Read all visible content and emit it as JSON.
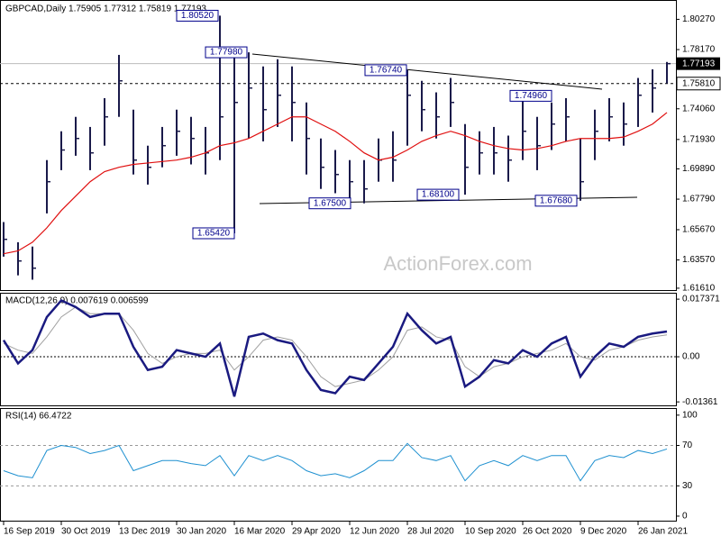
{
  "chart_data": [
    {
      "type": "ohlc",
      "title": "GBPCAD,Daily  1.75905 1.77312 1.75819 1.77193",
      "watermark": "ActionForex.com",
      "categories": [
        "16 Sep 2019",
        null,
        null,
        null,
        "30 Oct 2019",
        null,
        null,
        null,
        "13 Dec 2019",
        null,
        null,
        null,
        "30 Jan 2020",
        null,
        null,
        null,
        "16 Mar 2020",
        null,
        null,
        null,
        "29 Apr 2020",
        null,
        null,
        null,
        "12 Jun 2020",
        null,
        null,
        null,
        "28 Jul 2020",
        null,
        null,
        null,
        "10 Sep 2020",
        null,
        null,
        null,
        "26 Oct 2020",
        null,
        null,
        null,
        "9 Dec 2020",
        null,
        null,
        null,
        "26 Jan 2021",
        null,
        null
      ],
      "high": [
        1.662,
        1.648,
        1.645,
        1.705,
        1.725,
        1.735,
        1.728,
        1.748,
        1.778,
        1.74,
        1.715,
        1.728,
        1.74,
        1.735,
        1.728,
        1.8052,
        1.78,
        1.7798,
        1.77,
        1.775,
        1.77,
        1.745,
        1.72,
        1.712,
        1.705,
        1.705,
        1.72,
        1.725,
        1.7674,
        1.76,
        1.752,
        1.762,
        1.73,
        1.725,
        1.728,
        1.722,
        1.7496,
        1.735,
        1.745,
        1.748,
        1.72,
        1.74,
        1.748,
        1.745,
        1.762,
        1.768,
        1.7731
      ],
      "low": [
        1.638,
        1.625,
        1.622,
        1.668,
        1.698,
        1.708,
        1.698,
        1.715,
        1.735,
        1.695,
        1.688,
        1.7,
        1.708,
        1.702,
        1.695,
        1.705,
        1.6542,
        1.72,
        1.718,
        1.728,
        1.718,
        1.695,
        1.685,
        1.682,
        1.675,
        1.675,
        1.69,
        1.69,
        1.715,
        1.725,
        1.72,
        1.728,
        1.681,
        1.695,
        1.695,
        1.69,
        1.705,
        1.698,
        1.712,
        1.718,
        1.6768,
        1.705,
        1.718,
        1.715,
        1.728,
        1.738,
        1.7582
      ],
      "close": [
        1.65,
        1.635,
        1.63,
        1.69,
        1.712,
        1.72,
        1.71,
        1.735,
        1.76,
        1.705,
        1.7,
        1.715,
        1.725,
        1.72,
        1.71,
        1.735,
        1.745,
        1.755,
        1.74,
        1.75,
        1.745,
        1.72,
        1.7,
        1.695,
        1.69,
        1.685,
        1.705,
        1.705,
        1.75,
        1.74,
        1.735,
        1.745,
        1.7,
        1.71,
        1.71,
        1.705,
        1.725,
        1.715,
        1.73,
        1.735,
        1.69,
        1.725,
        1.735,
        1.73,
        1.75,
        1.755,
        1.77193
      ],
      "ma": [
        1.64,
        1.642,
        1.648,
        1.658,
        1.67,
        1.68,
        1.69,
        1.697,
        1.7,
        1.702,
        1.703,
        1.704,
        1.705,
        1.707,
        1.71,
        1.715,
        1.717,
        1.72,
        1.725,
        1.73,
        1.735,
        1.735,
        1.73,
        1.725,
        1.718,
        1.71,
        1.705,
        1.707,
        1.712,
        1.718,
        1.722,
        1.725,
        1.722,
        1.718,
        1.715,
        1.713,
        1.712,
        1.713,
        1.715,
        1.718,
        1.72,
        1.72,
        1.72,
        1.721,
        1.725,
        1.73,
        1.738
      ],
      "bar_color": "#1a1a4a",
      "ma_color": "#e01010",
      "ylim": [
        1.6148,
        1.8161
      ],
      "yticks": [
        {
          "value": 1.8027,
          "label": "1.80270"
        },
        {
          "value": 1.7817,
          "label": "1.78170"
        },
        {
          "value": 1.7406,
          "label": "1.74060"
        },
        {
          "value": 1.7193,
          "label": "1.71930"
        },
        {
          "value": 1.6989,
          "label": "1.69890"
        },
        {
          "value": 1.6779,
          "label": "1.67790"
        },
        {
          "value": 1.6567,
          "label": "1.65670"
        },
        {
          "value": 1.6357,
          "label": "1.63570"
        },
        {
          "value": 1.6161,
          "label": "1.61610"
        }
      ],
      "current_price": {
        "value": 1.77193,
        "label": "1.77193"
      },
      "level": {
        "value": 1.7581,
        "label": "1.75810"
      },
      "annotations": [
        {
          "value": 1.8052,
          "label": "1.80520"
        },
        {
          "value": 1.7798,
          "label": "1.77980"
        },
        {
          "value": 1.7674,
          "label": "1.76740"
        },
        {
          "value": 1.7496,
          "label": "1.74960"
        },
        {
          "value": 1.6542,
          "label": "1.65420"
        },
        {
          "value": 1.675,
          "label": "1.67500"
        },
        {
          "value": 1.681,
          "label": "1.68100"
        },
        {
          "value": 1.6768,
          "label": "1.67680"
        }
      ]
    },
    {
      "type": "line",
      "title": "MACD(12,26,9) 0.007619 0.006599",
      "macd": [
        0.005,
        -0.002,
        0.002,
        0.012,
        0.017,
        0.015,
        0.012,
        0.013,
        0.013,
        0.003,
        -0.004,
        -0.003,
        0.002,
        0.001,
        0,
        0.004,
        -0.012,
        0.006,
        0.007,
        0.005,
        0.004,
        -0.004,
        -0.01,
        -0.011,
        -0.006,
        -0.007,
        -0.002,
        0.003,
        0.013,
        0.008,
        0.004,
        0.006,
        -0.009,
        -0.006,
        -0.001,
        -0.002,
        0.002,
        0,
        0.004,
        0.006,
        -0.006,
        0,
        0.004,
        0.003,
        0.006,
        0.007,
        0.007619
      ],
      "signal": [
        0.004,
        0.002,
        0.001,
        0.006,
        0.012,
        0.015,
        0.013,
        0.013,
        0.013,
        0.008,
        0.001,
        -0.002,
        0,
        0.001,
        0.001,
        0.002,
        -0.004,
        0,
        0.005,
        0.006,
        0.005,
        0,
        -0.006,
        -0.009,
        -0.008,
        -0.007,
        -0.004,
        0,
        0.008,
        0.009,
        0.006,
        0.005,
        -0.003,
        -0.006,
        -0.003,
        -0.002,
        0,
        0.001,
        0.002,
        0.004,
        0,
        -0.001,
        0.002,
        0.003,
        0.005,
        0.006,
        0.006599
      ],
      "macd_color": "#1a1a80",
      "signal_color": "#a0a0a0",
      "ylim": [
        -0.01466,
        0.0193
      ],
      "yticks": [
        0.017371,
        {
          "value": 0,
          "label": "0.00"
        },
        -0.01361
      ]
    },
    {
      "type": "line",
      "title": "RSI(14) 66.4722",
      "values": [
        45,
        40,
        38,
        65,
        70,
        68,
        62,
        65,
        70,
        45,
        50,
        55,
        55,
        52,
        50,
        60,
        40,
        60,
        55,
        60,
        55,
        45,
        40,
        42,
        38,
        45,
        55,
        55,
        72,
        58,
        55,
        60,
        35,
        50,
        55,
        50,
        60,
        55,
        60,
        60,
        35,
        55,
        60,
        58,
        65,
        62,
        66.4722
      ],
      "color": "#1e90d0",
      "ylim": [
        -4.5,
        107
      ],
      "yticks": [
        100,
        70,
        30,
        0
      ],
      "levels": [
        70,
        30
      ]
    }
  ]
}
